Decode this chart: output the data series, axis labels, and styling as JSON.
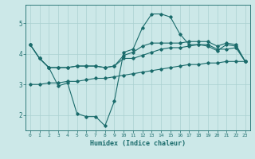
{
  "xlabel": "Humidex (Indice chaleur)",
  "bg_color": "#cce8e8",
  "grid_color": "#aad0d0",
  "line_color": "#1a6b6b",
  "xlim": [
    -0.5,
    23.5
  ],
  "ylim": [
    1.5,
    5.6
  ],
  "yticks": [
    2,
    3,
    4,
    5
  ],
  "xticks": [
    0,
    1,
    2,
    3,
    4,
    5,
    6,
    7,
    8,
    9,
    10,
    11,
    12,
    13,
    14,
    15,
    16,
    17,
    18,
    19,
    20,
    21,
    22,
    23
  ],
  "line1_x": [
    0,
    1,
    2,
    3,
    4,
    5,
    6,
    7,
    8,
    9,
    10,
    11,
    12,
    13,
    14,
    15,
    16,
    17,
    18,
    19,
    20,
    21,
    22,
    23
  ],
  "line1_y": [
    4.3,
    3.85,
    3.55,
    2.95,
    3.05,
    2.05,
    1.95,
    1.95,
    1.65,
    2.45,
    4.05,
    4.15,
    4.85,
    5.3,
    5.3,
    5.2,
    4.65,
    4.3,
    4.3,
    4.25,
    4.1,
    4.3,
    4.25,
    3.75
  ],
  "line2_x": [
    0,
    1,
    2,
    3,
    4,
    5,
    6,
    7,
    8,
    9,
    10,
    11,
    12,
    13,
    14,
    15,
    16,
    17,
    18,
    19,
    20,
    21,
    22,
    23
  ],
  "line2_y": [
    4.3,
    3.85,
    3.55,
    3.55,
    3.55,
    3.6,
    3.6,
    3.6,
    3.55,
    3.6,
    3.85,
    3.85,
    3.95,
    4.05,
    4.15,
    4.2,
    4.2,
    4.25,
    4.3,
    4.3,
    4.15,
    4.15,
    4.2,
    3.75
  ],
  "line3_x": [
    0,
    1,
    2,
    3,
    4,
    5,
    6,
    7,
    8,
    9,
    10,
    11,
    12,
    13,
    14,
    15,
    16,
    17,
    18,
    19,
    20,
    21,
    22,
    23
  ],
  "line3_y": [
    4.3,
    3.85,
    3.55,
    3.55,
    3.55,
    3.6,
    3.6,
    3.6,
    3.55,
    3.6,
    3.95,
    4.05,
    4.25,
    4.35,
    4.35,
    4.35,
    4.35,
    4.4,
    4.4,
    4.4,
    4.25,
    4.35,
    4.3,
    3.75
  ],
  "line4_x": [
    0,
    1,
    2,
    3,
    4,
    5,
    6,
    7,
    8,
    9,
    10,
    11,
    12,
    13,
    14,
    15,
    16,
    17,
    18,
    19,
    20,
    21,
    22,
    23
  ],
  "line4_y": [
    3.0,
    3.0,
    3.05,
    3.05,
    3.1,
    3.1,
    3.15,
    3.2,
    3.2,
    3.25,
    3.3,
    3.35,
    3.4,
    3.45,
    3.5,
    3.55,
    3.6,
    3.65,
    3.65,
    3.7,
    3.7,
    3.75,
    3.75,
    3.75
  ]
}
